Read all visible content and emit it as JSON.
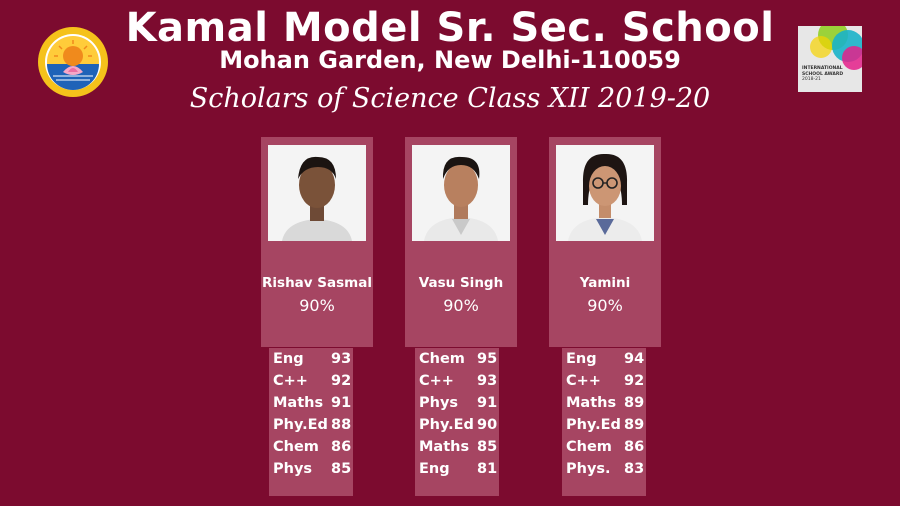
{
  "header": {
    "school_name": "Kamal Model Sr. Sec. School",
    "address": "Mohan Garden, New Delhi-110059",
    "subtitle": "Scholars of Science Class XII 2019-20"
  },
  "award": {
    "title_line1": "INTERNATIONAL",
    "title_line2": "SCHOOL AWARD",
    "years": "2018-21"
  },
  "colors": {
    "background": "#7c0b2f",
    "card": "#a64562",
    "text": "#ffffff"
  },
  "students": [
    {
      "name": "Rishav Sasmal",
      "percent": "90%",
      "marks": [
        {
          "subject": "Eng",
          "score": "93"
        },
        {
          "subject": "C++",
          "score": "92"
        },
        {
          "subject": "Maths",
          "score": "91"
        },
        {
          "subject": "Phy.Ed",
          "score": "88"
        },
        {
          "subject": "Chem",
          "score": "86"
        },
        {
          "subject": "Phys",
          "score": "85"
        }
      ]
    },
    {
      "name": "Vasu Singh",
      "percent": "90%",
      "marks": [
        {
          "subject": "Chem",
          "score": "95"
        },
        {
          "subject": "C++",
          "score": "93"
        },
        {
          "subject": "Phys",
          "score": "91"
        },
        {
          "subject": "Phy.Ed",
          "score": "90"
        },
        {
          "subject": "Maths",
          "score": "85"
        },
        {
          "subject": "Eng",
          "score": "81"
        }
      ]
    },
    {
      "name": "Yamini",
      "percent": "90%",
      "marks": [
        {
          "subject": "Eng",
          "score": "94"
        },
        {
          "subject": "C++",
          "score": "92"
        },
        {
          "subject": "Maths",
          "score": "89"
        },
        {
          "subject": "Phy.Ed",
          "score": "89"
        },
        {
          "subject": "Chem",
          "score": "86"
        },
        {
          "subject": "Phys.",
          "score": "83"
        }
      ]
    }
  ]
}
